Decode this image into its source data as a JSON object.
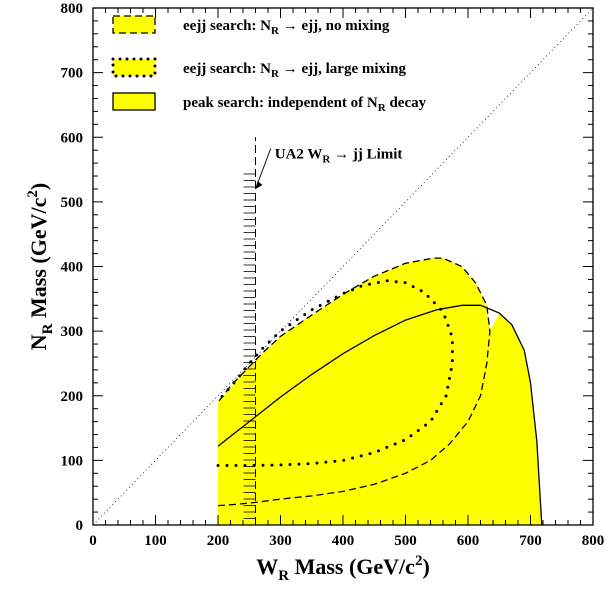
{
  "chart_data": {
    "type": "area",
    "xlabel": {
      "main": "W",
      "sub": "R",
      "rest": " Mass (GeV/c",
      "sup": "2",
      "end": ")"
    },
    "ylabel": {
      "main": "N",
      "sub": "R",
      "rest": " Mass (GeV/c",
      "sup": "2",
      "end": ")"
    },
    "xlim": [
      0,
      800
    ],
    "ylim": [
      0,
      800
    ],
    "x_ticks": [
      "0",
      "100",
      "200",
      "300",
      "400",
      "500",
      "600",
      "700",
      "800"
    ],
    "y_ticks": [
      "0",
      "100",
      "200",
      "300",
      "400",
      "500",
      "600",
      "700",
      "800"
    ],
    "grid": false,
    "legend_position": "top-left",
    "colors": {
      "fill": "#ffff00",
      "line": "#000000"
    },
    "diagonal": {
      "x": [
        0,
        800
      ],
      "y": [
        0,
        800
      ],
      "style": "dotted"
    },
    "series": [
      {
        "name": "eejj search: N_R → ejj, no mixing",
        "legend": {
          "pre": "eejj search: N",
          "sub": "R",
          "post": " → ejj, no mixing"
        },
        "style": "dashed",
        "points": [
          [
            200,
            30
          ],
          [
            230,
            32
          ],
          [
            260,
            35
          ],
          [
            300,
            40
          ],
          [
            350,
            45
          ],
          [
            400,
            52
          ],
          [
            450,
            63
          ],
          [
            500,
            80
          ],
          [
            540,
            100
          ],
          [
            570,
            125
          ],
          [
            600,
            160
          ],
          [
            620,
            200
          ],
          [
            630,
            250
          ],
          [
            635,
            300
          ],
          [
            630,
            340
          ],
          [
            612,
            375
          ],
          [
            590,
            400
          ],
          [
            560,
            413
          ],
          [
            545,
            413
          ],
          [
            500,
            405
          ],
          [
            450,
            385
          ],
          [
            400,
            357
          ],
          [
            350,
            325
          ],
          [
            300,
            292
          ],
          [
            270,
            265
          ],
          [
            240,
            235
          ],
          [
            220,
            215
          ],
          [
            200,
            190
          ]
        ]
      },
      {
        "name": "eejj search: N_R → ejj, large mixing",
        "legend": {
          "pre": "eejj search: N",
          "sub": "R",
          "post": " → ejj, large mixing"
        },
        "style": "dotted",
        "points": [
          [
            200,
            92
          ],
          [
            250,
            92
          ],
          [
            300,
            93
          ],
          [
            350,
            95
          ],
          [
            400,
            100
          ],
          [
            450,
            112
          ],
          [
            500,
            132
          ],
          [
            540,
            160
          ],
          [
            565,
            200
          ],
          [
            575,
            250
          ],
          [
            575,
            290
          ],
          [
            560,
            330
          ],
          [
            530,
            360
          ],
          [
            500,
            375
          ],
          [
            470,
            378
          ],
          [
            430,
            370
          ],
          [
            400,
            358
          ],
          [
            350,
            333
          ],
          [
            300,
            300
          ],
          [
            270,
            272
          ],
          [
            250,
            250
          ],
          [
            230,
            225
          ],
          [
            200,
            192
          ]
        ]
      },
      {
        "name": "peak search: independent of N_R decay",
        "legend": {
          "pre": "peak search: independent of N",
          "sub": "R",
          "post": " decay"
        },
        "style": "solid",
        "points": [
          [
            200,
            122
          ],
          [
            250,
            160
          ],
          [
            300,
            198
          ],
          [
            350,
            233
          ],
          [
            400,
            265
          ],
          [
            450,
            293
          ],
          [
            500,
            317
          ],
          [
            550,
            333
          ],
          [
            590,
            340
          ],
          [
            620,
            340
          ],
          [
            650,
            328
          ],
          [
            670,
            310
          ],
          [
            690,
            270
          ],
          [
            700,
            220
          ],
          [
            710,
            130
          ],
          [
            718,
            0
          ]
        ]
      }
    ],
    "annotations": [
      {
        "pre": "UA2 W",
        "sub": "R",
        "post": " → jj Limit",
        "x": 260,
        "y": 520,
        "text_x": 310,
        "text_y": 575
      }
    ],
    "ua2_limit": {
      "x": 260,
      "ymin": 0,
      "ymax": 600,
      "hatch_top": 550
    },
    "excluded_fill": {
      "upper_boundary": [
        [
          200,
          190
        ],
        [
          240,
          235
        ],
        [
          300,
          292
        ],
        [
          350,
          325
        ],
        [
          400,
          357
        ],
        [
          450,
          385
        ],
        [
          500,
          405
        ],
        [
          545,
          413
        ],
        [
          560,
          413
        ],
        [
          590,
          400
        ],
        [
          612,
          375
        ],
        [
          630,
          340
        ],
        [
          635,
          300
        ],
        [
          650,
          328
        ],
        [
          670,
          310
        ],
        [
          690,
          270
        ],
        [
          700,
          220
        ],
        [
          710,
          130
        ],
        [
          718,
          0
        ]
      ],
      "baseline": 0
    }
  }
}
